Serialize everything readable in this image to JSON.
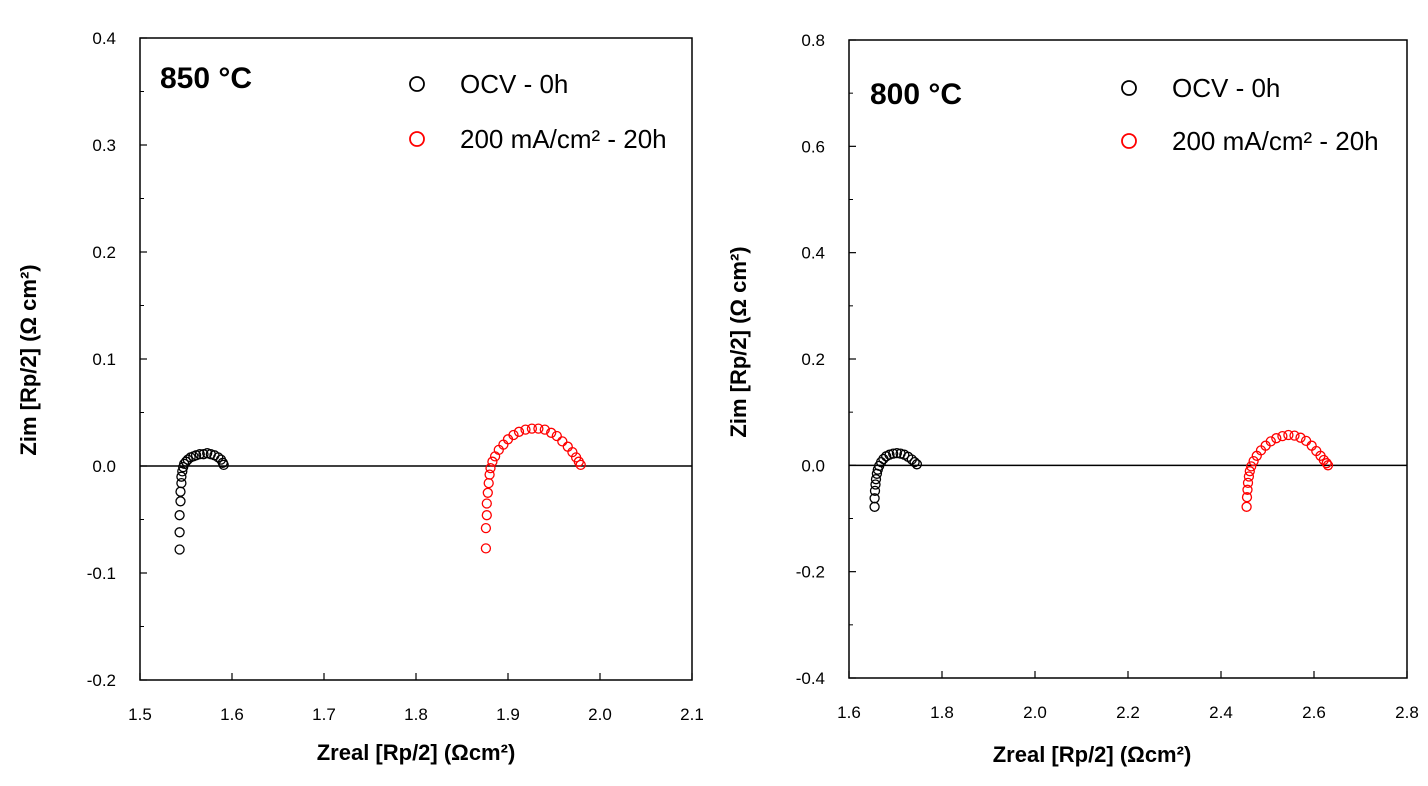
{
  "chart_data": [
    {
      "type": "scatter",
      "title": "850 °C",
      "xlabel": "Zreal [Rp/2] (Ωcm²)",
      "ylabel": "Zim [Rp/2] (Ω cm²)",
      "xlim": [
        1.5,
        2.1
      ],
      "ylim": [
        -0.2,
        0.4
      ],
      "x_ticks": [
        "1.5",
        "1.6",
        "1.7",
        "1.8",
        "1.9",
        "2.0",
        "2.1"
      ],
      "y_ticks": [
        "0.4",
        "0.3",
        "0.2",
        "0.1",
        "0.0",
        "-0.1",
        "-0.2"
      ],
      "legend_position": "top-right",
      "zero_line": true,
      "series": [
        {
          "name": "OCV - 0h",
          "color": "#000000",
          "marker": "open-circle",
          "points": [
            [
              1.543,
              -0.078
            ],
            [
              1.543,
              -0.062
            ],
            [
              1.543,
              -0.046
            ],
            [
              1.544,
              -0.033
            ],
            [
              1.544,
              -0.024
            ],
            [
              1.545,
              -0.016
            ],
            [
              1.545,
              -0.01
            ],
            [
              1.546,
              -0.005
            ],
            [
              1.547,
              -0.001
            ],
            [
              1.548,
              0.002
            ],
            [
              1.55,
              0.004
            ],
            [
              1.552,
              0.006
            ],
            [
              1.555,
              0.008
            ],
            [
              1.558,
              0.009
            ],
            [
              1.561,
              0.01
            ],
            [
              1.565,
              0.011
            ],
            [
              1.569,
              0.011
            ],
            [
              1.573,
              0.012
            ],
            [
              1.577,
              0.011
            ],
            [
              1.581,
              0.01
            ],
            [
              1.585,
              0.008
            ],
            [
              1.588,
              0.006
            ],
            [
              1.59,
              0.003
            ],
            [
              1.591,
              0.001
            ]
          ]
        },
        {
          "name": "200 mA/cm² - 20h",
          "color": "#ff0000",
          "marker": "open-circle",
          "points": [
            [
              1.876,
              -0.077
            ],
            [
              1.876,
              -0.058
            ],
            [
              1.877,
              -0.046
            ],
            [
              1.877,
              -0.035
            ],
            [
              1.878,
              -0.025
            ],
            [
              1.879,
              -0.016
            ],
            [
              1.88,
              -0.008
            ],
            [
              1.881,
              -0.002
            ],
            [
              1.883,
              0.004
            ],
            [
              1.886,
              0.009
            ],
            [
              1.89,
              0.015
            ],
            [
              1.895,
              0.02
            ],
            [
              1.9,
              0.025
            ],
            [
              1.906,
              0.029
            ],
            [
              1.912,
              0.032
            ],
            [
              1.919,
              0.034
            ],
            [
              1.926,
              0.035
            ],
            [
              1.933,
              0.035
            ],
            [
              1.94,
              0.034
            ],
            [
              1.947,
              0.031
            ],
            [
              1.953,
              0.028
            ],
            [
              1.959,
              0.023
            ],
            [
              1.965,
              0.018
            ],
            [
              1.97,
              0.013
            ],
            [
              1.974,
              0.008
            ],
            [
              1.977,
              0.004
            ],
            [
              1.979,
              0.001
            ]
          ]
        }
      ]
    },
    {
      "type": "scatter",
      "title": "800 °C",
      "xlabel": "Zreal [Rp/2] (Ωcm²)",
      "ylabel": "Zim [Rp/2] (Ω cm²)",
      "xlim": [
        1.6,
        2.8
      ],
      "ylim": [
        -0.4,
        0.8
      ],
      "x_ticks": [
        "1.6",
        "1.8",
        "2.0",
        "2.2",
        "2.4",
        "2.6",
        "2.8"
      ],
      "y_ticks": [
        "0.8",
        "0.6",
        "0.4",
        "0.2",
        "0.0",
        "-0.2",
        "-0.4"
      ],
      "legend_position": "top-right",
      "zero_line": true,
      "series": [
        {
          "name": "OCV - 0h",
          "color": "#000000",
          "marker": "open-circle",
          "points": [
            [
              1.655,
              -0.078
            ],
            [
              1.655,
              -0.062
            ],
            [
              1.656,
              -0.048
            ],
            [
              1.657,
              -0.036
            ],
            [
              1.658,
              -0.026
            ],
            [
              1.66,
              -0.016
            ],
            [
              1.662,
              -0.008
            ],
            [
              1.665,
              -0.001
            ],
            [
              1.669,
              0.006
            ],
            [
              1.674,
              0.012
            ],
            [
              1.68,
              0.017
            ],
            [
              1.687,
              0.02
            ],
            [
              1.695,
              0.022
            ],
            [
              1.703,
              0.023
            ],
            [
              1.711,
              0.022
            ],
            [
              1.719,
              0.02
            ],
            [
              1.727,
              0.016
            ],
            [
              1.735,
              0.011
            ],
            [
              1.741,
              0.006
            ],
            [
              1.746,
              0.002
            ]
          ]
        },
        {
          "name": "200 mA/cm² - 20h",
          "color": "#ff0000",
          "marker": "open-circle",
          "points": [
            [
              2.455,
              -0.078
            ],
            [
              2.456,
              -0.06
            ],
            [
              2.457,
              -0.046
            ],
            [
              2.458,
              -0.033
            ],
            [
              2.46,
              -0.021
            ],
            [
              2.462,
              -0.011
            ],
            [
              2.465,
              -0.002
            ],
            [
              2.47,
              0.008
            ],
            [
              2.477,
              0.018
            ],
            [
              2.486,
              0.028
            ],
            [
              2.496,
              0.037
            ],
            [
              2.507,
              0.045
            ],
            [
              2.519,
              0.051
            ],
            [
              2.532,
              0.055
            ],
            [
              2.545,
              0.057
            ],
            [
              2.558,
              0.056
            ],
            [
              2.571,
              0.052
            ],
            [
              2.583,
              0.046
            ],
            [
              2.595,
              0.037
            ],
            [
              2.605,
              0.027
            ],
            [
              2.614,
              0.018
            ],
            [
              2.621,
              0.01
            ],
            [
              2.627,
              0.004
            ],
            [
              2.63,
              0.0
            ]
          ]
        }
      ]
    }
  ]
}
